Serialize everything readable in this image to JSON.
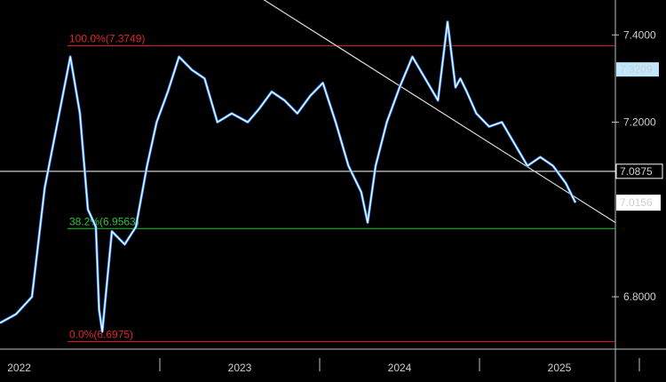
{
  "chart_data": {
    "type": "line",
    "title": "",
    "xlabel": "",
    "ylabel": "",
    "x_ticks": [
      "2022",
      "2023",
      "2024",
      "2025"
    ],
    "y_ticks": [
      "7.4000",
      "7.2000",
      "6.8000"
    ],
    "ylim": [
      6.68,
      7.48
    ],
    "xlim": [
      2022.0,
      2025.85
    ],
    "grid": false,
    "colors": {
      "background": "#000000",
      "price_line": "#ffffff",
      "price_shadow": "#2f8fff",
      "fib_levels": "#e0242c",
      "fib_mid": "#27c43a",
      "trendline": "#d9d9d9",
      "horizontal": "#ffffff",
      "label_last": "#bfe8ff"
    },
    "fibonacci": {
      "levels": [
        {
          "label": "100.0%(7.3749)",
          "value": 7.3749,
          "color": "#e0242c"
        },
        {
          "label": "38.2%(6.9563)",
          "value": 6.9563,
          "color": "#27c43a"
        },
        {
          "label": "0.0%(6.6975)",
          "value": 6.6975,
          "color": "#e0242c"
        }
      ]
    },
    "horizontal_line": {
      "value": 7.0875,
      "label": "7.0875"
    },
    "trendline": {
      "x": [
        2023.05,
        2025.85
      ],
      "y": [
        7.62,
        6.97
      ]
    },
    "price_labels": [
      {
        "label": "7.3209",
        "value": 7.3209
      },
      {
        "label": "7.0156",
        "value": 7.0156
      }
    ],
    "series": [
      {
        "x": [
          2022.0,
          2022.1,
          2022.2,
          2022.28,
          2022.36,
          2022.44,
          2022.5,
          2022.55,
          2022.6,
          2022.62,
          2022.64,
          2022.7,
          2022.78,
          2022.85,
          2022.92,
          2022.98,
          2023.05,
          2023.12,
          2023.2,
          2023.28,
          2023.36,
          2023.45,
          2023.55,
          2023.62,
          2023.7,
          2023.78,
          2023.86,
          2023.94,
          2024.02,
          2024.1,
          2024.18,
          2024.26,
          2024.3,
          2024.35,
          2024.42,
          2024.5,
          2024.58,
          2024.66,
          2024.74,
          2024.8,
          2024.85,
          2024.88,
          2024.92,
          2024.98,
          2025.06,
          2025.14,
          2025.22,
          2025.3,
          2025.38,
          2025.46,
          2025.54,
          2025.6
        ],
        "values": [
          6.74,
          6.76,
          6.8,
          7.05,
          7.2,
          7.35,
          7.22,
          7.0,
          6.96,
          6.77,
          6.72,
          6.95,
          6.92,
          6.96,
          7.1,
          7.2,
          7.27,
          7.35,
          7.32,
          7.3,
          7.2,
          7.22,
          7.2,
          7.23,
          7.27,
          7.25,
          7.22,
          7.26,
          7.29,
          7.2,
          7.1,
          7.04,
          6.97,
          7.1,
          7.2,
          7.28,
          7.35,
          7.3,
          7.25,
          7.43,
          7.28,
          7.3,
          7.27,
          7.22,
          7.19,
          7.2,
          7.15,
          7.1,
          7.12,
          7.1,
          7.06,
          7.0156
        ]
      }
    ]
  }
}
